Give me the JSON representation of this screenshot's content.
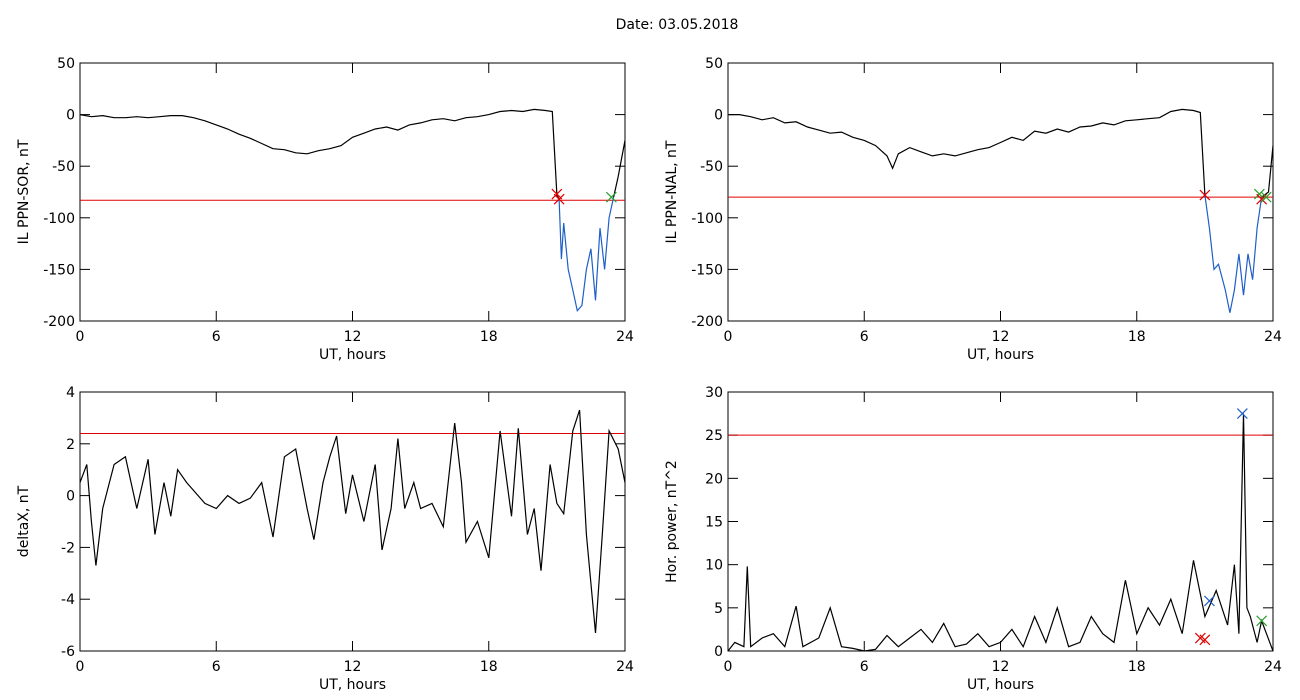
{
  "title": "Date:  03.05.2018",
  "chart_data": [
    {
      "type": "line",
      "ylabel": "IL PPN-SOR, nT",
      "xlabel": "UT, hours",
      "xlim": [
        0,
        24
      ],
      "ylim": [
        -200,
        50
      ],
      "xticks": [
        0,
        6,
        12,
        18,
        24
      ],
      "yticks": [
        50,
        0,
        -50,
        -100,
        -150,
        -200
      ],
      "threshold": -83,
      "threshold_color": "#e00000",
      "series": [
        {
          "color": "#000000",
          "x": [
            0,
            0.5,
            1,
            1.5,
            2,
            2.5,
            3,
            3.5,
            4,
            4.5,
            5,
            5.5,
            6,
            6.5,
            7,
            7.5,
            8,
            8.5,
            9,
            9.5,
            10,
            10.5,
            11,
            11.5,
            12,
            12.5,
            13,
            13.5,
            14,
            14.5,
            15,
            15.5,
            16,
            16.5,
            17,
            17.5,
            18,
            18.5,
            19,
            19.5,
            20,
            20.5,
            20.8,
            21,
            21.1
          ],
          "values": [
            0,
            -2,
            -1,
            -3,
            -3,
            -2,
            -3,
            -2,
            -1,
            -1,
            -3,
            -6,
            -10,
            -14,
            -19,
            -23,
            -28,
            -33,
            -34,
            -37,
            -38,
            -35,
            -33,
            -30,
            -22,
            -18,
            -14,
            -12,
            -15,
            -10,
            -8,
            -5,
            -4,
            -6,
            -3,
            -2,
            0,
            3,
            4,
            3,
            5,
            4,
            3,
            -78,
            -82
          ]
        },
        {
          "color": "#1f5fc8",
          "x": [
            21.1,
            21.2,
            21.3,
            21.5,
            21.7,
            21.9,
            22.1,
            22.3,
            22.5,
            22.7,
            22.9,
            23.1,
            23.3,
            23.5
          ],
          "values": [
            -82,
            -140,
            -105,
            -150,
            -170,
            -190,
            -185,
            -150,
            -130,
            -180,
            -110,
            -150,
            -100,
            -80
          ]
        },
        {
          "color": "#000000",
          "x": [
            23.5,
            23.7,
            24
          ],
          "values": [
            -80,
            -60,
            -25
          ]
        }
      ],
      "markers": [
        {
          "x": 21.0,
          "y": -77,
          "color": "#e00000"
        },
        {
          "x": 21.1,
          "y": -82,
          "color": "#e00000"
        },
        {
          "x": 23.4,
          "y": -80,
          "color": "#2ca02c"
        }
      ]
    },
    {
      "type": "line",
      "ylabel": "IL PPN-NAL, nT",
      "xlabel": "UT, hours",
      "xlim": [
        0,
        24
      ],
      "ylim": [
        -200,
        50
      ],
      "xticks": [
        0,
        6,
        12,
        18,
        24
      ],
      "yticks": [
        50,
        0,
        -50,
        -100,
        -150,
        -200
      ],
      "threshold": -80,
      "threshold_color": "#e00000",
      "series": [
        {
          "color": "#000000",
          "x": [
            0,
            0.5,
            1,
            1.5,
            2,
            2.5,
            3,
            3.5,
            4,
            4.5,
            5,
            5.5,
            6,
            6.5,
            7,
            7.25,
            7.5,
            8,
            8.5,
            9,
            9.5,
            10,
            10.5,
            11,
            11.5,
            12,
            12.5,
            13,
            13.5,
            14,
            14.5,
            15,
            15.5,
            16,
            16.5,
            17,
            17.5,
            18,
            18.5,
            19,
            19.5,
            20,
            20.5,
            20.8,
            21
          ],
          "values": [
            0,
            0,
            -2,
            -5,
            -3,
            -8,
            -7,
            -12,
            -15,
            -18,
            -17,
            -22,
            -25,
            -30,
            -40,
            -52,
            -38,
            -32,
            -36,
            -40,
            -38,
            -40,
            -37,
            -34,
            -32,
            -27,
            -22,
            -25,
            -16,
            -18,
            -14,
            -17,
            -12,
            -11,
            -8,
            -10,
            -6,
            -5,
            -4,
            -3,
            3,
            5,
            4,
            2,
            -78
          ]
        },
        {
          "color": "#1f5fc8",
          "x": [
            21,
            21.2,
            21.4,
            21.6,
            21.9,
            22.1,
            22.3,
            22.5,
            22.7,
            22.9,
            23.1,
            23.3,
            23.5
          ],
          "values": [
            -78,
            -110,
            -150,
            -145,
            -170,
            -192,
            -170,
            -135,
            -175,
            -135,
            -160,
            -110,
            -80
          ]
        },
        {
          "color": "#000000",
          "x": [
            23.5,
            23.8,
            24
          ],
          "values": [
            -80,
            -75,
            -30
          ]
        }
      ],
      "markers": [
        {
          "x": 21.0,
          "y": -78,
          "color": "#e00000"
        },
        {
          "x": 23.4,
          "y": -77,
          "color": "#2ca02c"
        },
        {
          "x": 23.5,
          "y": -82,
          "color": "#e00000"
        },
        {
          "x": 23.7,
          "y": -80,
          "color": "#2ca02c"
        }
      ]
    },
    {
      "type": "line",
      "ylabel": "deltaX, nT",
      "xlabel": "UT, hours",
      "xlim": [
        0,
        24
      ],
      "ylim": [
        -6,
        4
      ],
      "xticks": [
        0,
        6,
        12,
        18,
        24
      ],
      "yticks": [
        4,
        2,
        0,
        -2,
        -4,
        -6
      ],
      "threshold": 2.4,
      "threshold_color": "#e00000",
      "series": [
        {
          "color": "#000000",
          "x": [
            0,
            0.3,
            0.5,
            0.7,
            1,
            1.5,
            2,
            2.5,
            3,
            3.3,
            3.7,
            4,
            4.3,
            4.7,
            5,
            5.5,
            6,
            6.5,
            7,
            7.5,
            8,
            8.5,
            9,
            9.5,
            10,
            10.3,
            10.7,
            11,
            11.3,
            11.7,
            12,
            12.5,
            13,
            13.3,
            13.7,
            14,
            14.3,
            14.7,
            15,
            15.5,
            16,
            16.5,
            16.8,
            17,
            17.5,
            18,
            18.5,
            19,
            19.3,
            19.7,
            20,
            20.3,
            20.7,
            21,
            21.3,
            21.7,
            22,
            22.3,
            22.7,
            23,
            23.3,
            23.7,
            24
          ],
          "values": [
            0.5,
            1.2,
            -1,
            -2.7,
            -0.5,
            1.2,
            1.5,
            -0.5,
            1.4,
            -1.5,
            0.5,
            -0.8,
            1,
            0.5,
            0.2,
            -0.3,
            -0.5,
            0,
            -0.3,
            -0.1,
            0.5,
            -1.6,
            1.5,
            1.8,
            -0.5,
            -1.7,
            0.5,
            1.5,
            2.3,
            -0.7,
            0.8,
            -1,
            1.2,
            -2.1,
            -0.5,
            2.2,
            -0.5,
            0.5,
            -0.5,
            -0.3,
            -1.2,
            2.8,
            0.5,
            -1.8,
            -1,
            -2.4,
            2.5,
            -0.8,
            2.6,
            -1.5,
            -0.5,
            -2.9,
            1.2,
            -0.3,
            -0.7,
            2.5,
            3.3,
            -1.5,
            -5.3,
            -1.5,
            2.5,
            1.8,
            0.5
          ]
        }
      ],
      "markers": []
    },
    {
      "type": "line",
      "ylabel": "Hor. power, nT^2",
      "xlabel": "UT, hours",
      "xlim": [
        0,
        24
      ],
      "ylim": [
        0,
        30
      ],
      "xticks": [
        0,
        6,
        12,
        18,
        24
      ],
      "yticks": [
        30,
        25,
        20,
        15,
        10,
        5,
        0
      ],
      "threshold": 25,
      "threshold_color": "#e00000",
      "series": [
        {
          "color": "#000000",
          "x": [
            0,
            0.3,
            0.7,
            0.85,
            1,
            1.5,
            2,
            2.5,
            3,
            3.3,
            4,
            4.5,
            5,
            5.5,
            6,
            6.5,
            7,
            7.5,
            8,
            8.5,
            9,
            9.5,
            10,
            10.5,
            11,
            11.5,
            12,
            12.5,
            13,
            13.5,
            14,
            14.5,
            15,
            15.5,
            16,
            16.5,
            17,
            17.5,
            18,
            18.5,
            19,
            19.5,
            20,
            20.5,
            21,
            21.5,
            22,
            22.3,
            22.5,
            22.7,
            22.85,
            23,
            23.3,
            23.5,
            24
          ],
          "values": [
            0,
            1,
            0.5,
            9.8,
            0.5,
            1.5,
            2,
            0.5,
            5.2,
            0.5,
            1.5,
            5,
            0.5,
            0.3,
            0,
            0.2,
            1.8,
            0.5,
            1.5,
            2.5,
            1,
            3.2,
            0.5,
            0.8,
            2,
            0.5,
            1,
            2.5,
            0.5,
            4,
            1,
            5,
            0.5,
            1,
            4,
            2,
            1,
            8.2,
            2,
            5,
            3,
            6,
            2,
            10.5,
            4,
            7,
            3,
            10,
            2,
            27.5,
            5,
            4,
            1,
            3.5,
            0
          ]
        }
      ],
      "markers": [
        {
          "x": 20.8,
          "y": 1.5,
          "color": "#e00000"
        },
        {
          "x": 21.0,
          "y": 1.3,
          "color": "#e00000"
        },
        {
          "x": 21.2,
          "y": 5.8,
          "color": "#1f5fc8"
        },
        {
          "x": 22.65,
          "y": 27.5,
          "color": "#1f5fc8"
        },
        {
          "x": 23.5,
          "y": 3.5,
          "color": "#2ca02c"
        }
      ]
    }
  ]
}
